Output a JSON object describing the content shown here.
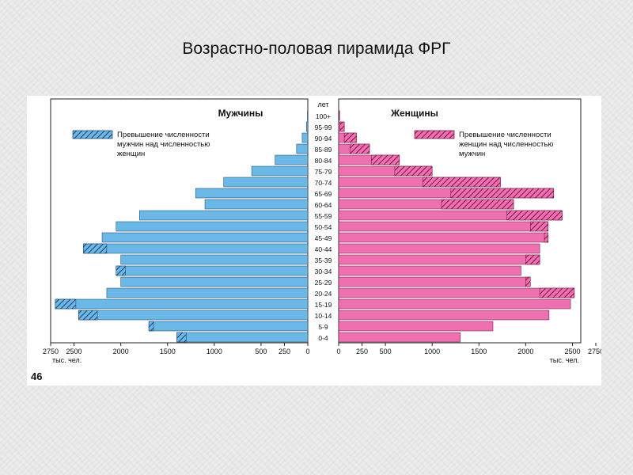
{
  "slide": {
    "title": "Возрастно-половая пирамида ФРГ"
  },
  "page_number": "46",
  "colors": {
    "male": "#6ab8e8",
    "female": "#ef70b0",
    "excess_male_hatch": "#1f3a66",
    "excess_female_hatch": "#7a1045"
  },
  "chart_data": {
    "type": "population-pyramid",
    "categories": [
      "100+",
      "95-99",
      "90-94",
      "85-89",
      "80-84",
      "75-79",
      "70-74",
      "65-69",
      "60-64",
      "55-59",
      "50-54",
      "45-49",
      "40-44",
      "35-39",
      "30-34",
      "25-29",
      "20-24",
      "15-19",
      "10-14",
      "5-9",
      "0-4"
    ],
    "age_header": "лет",
    "left_header": "Мужчины",
    "right_header": "Женщины",
    "left_unit": "тыс. чел.",
    "right_unit": "тыс. чел.",
    "x_ticks_left": [
      "2750",
      "2500",
      "2000",
      "1500",
      "1000",
      "500",
      "250",
      "0"
    ],
    "x_ticks_right": [
      "0",
      "250",
      "500",
      "1000",
      "1500",
      "2000",
      "2500",
      "2750"
    ],
    "xlim": [
      0,
      2750
    ],
    "series": [
      {
        "name": "Мужчины",
        "values": [
          5,
          15,
          60,
          120,
          350,
          600,
          900,
          1200,
          1100,
          1800,
          2050,
          2200,
          2400,
          2000,
          2050,
          2000,
          2150,
          2700,
          2450,
          1700,
          1400
        ]
      },
      {
        "name": "Женщины",
        "values": [
          10,
          60,
          190,
          330,
          650,
          1000,
          1730,
          2300,
          1870,
          2390,
          2240,
          2240,
          2150,
          2150,
          1950,
          2050,
          2520,
          2480,
          2250,
          1650,
          1300
        ]
      }
    ],
    "legend": [
      {
        "label": "Превышение численности мужчин над численностью женщин"
      },
      {
        "label": "Превышение численности женщин над численностью мужчин"
      }
    ],
    "legend_lines": {
      "male": [
        "Превышение численности",
        "мужчин над численностью",
        "женщин"
      ],
      "female": [
        "Превышение численности",
        "женщин над численностью",
        "мужчин"
      ]
    }
  }
}
